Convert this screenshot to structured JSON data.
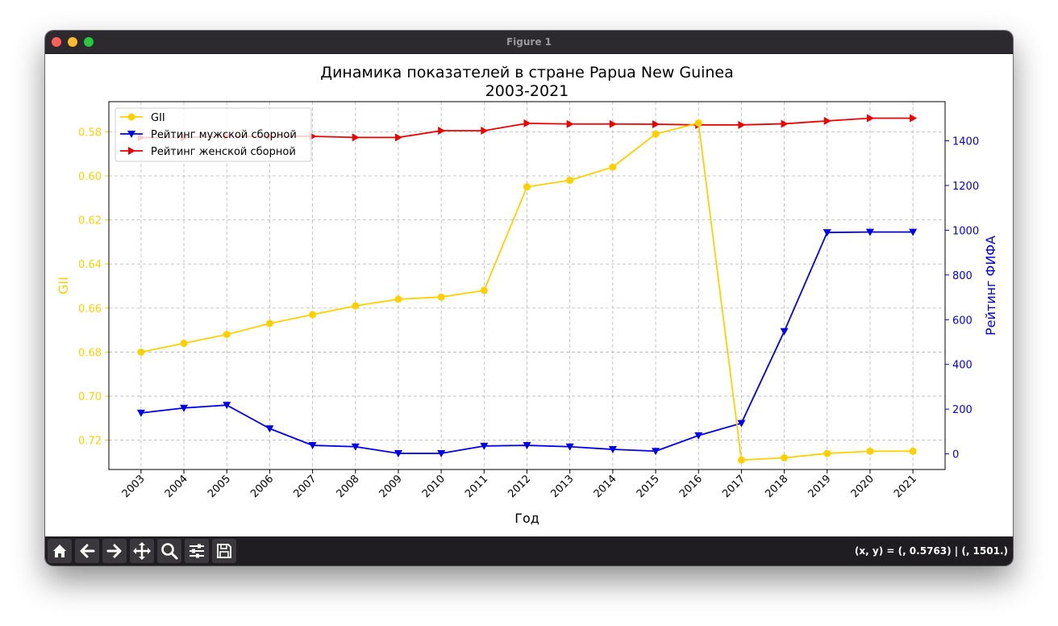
{
  "window": {
    "title": "Figure 1"
  },
  "toolbar": {
    "tools": [
      "home-icon",
      "back-arrow-icon",
      "forward-arrow-icon",
      "pan-icon",
      "zoom-icon",
      "configure-subplots-icon",
      "save-icon"
    ],
    "coords_text": "(x, y) = (, 0.5763) | (, 1501.)"
  },
  "chart_data": {
    "type": "line",
    "title": "Динамика показателей в стране Papua New Guinea",
    "subtitle": "2003-2021",
    "xlabel": "Год",
    "ylabel_left": "GII",
    "ylabel_right": "Рейтинг ФИФА",
    "categories": [
      "2003",
      "2004",
      "2005",
      "2006",
      "2007",
      "2008",
      "2009",
      "2010",
      "2011",
      "2012",
      "2013",
      "2014",
      "2015",
      "2016",
      "2017",
      "2018",
      "2019",
      "2020",
      "2021"
    ],
    "left_axis": {
      "ylim": [
        0.7333,
        0.5663
      ],
      "inverted": true,
      "ticks": [
        "0.58",
        "0.60",
        "0.62",
        "0.64",
        "0.66",
        "0.68",
        "0.70",
        "0.72"
      ],
      "tick_values": [
        0.58,
        0.6,
        0.62,
        0.64,
        0.66,
        0.68,
        0.7,
        0.72
      ]
    },
    "right_axis": {
      "ylim": [
        -70,
        1575
      ],
      "ticks": [
        "0",
        "200",
        "400",
        "600",
        "800",
        "1000",
        "1200",
        "1400"
      ],
      "tick_values": [
        0,
        200,
        400,
        600,
        800,
        1000,
        1200,
        1400
      ]
    },
    "series": [
      {
        "name": "GII",
        "axis": "left",
        "color": "#ffd000",
        "marker": "circle",
        "values": [
          0.68,
          0.676,
          0.672,
          0.667,
          0.663,
          0.659,
          0.656,
          0.655,
          0.652,
          0.605,
          0.602,
          0.596,
          0.581,
          0.576,
          0.729,
          0.728,
          0.726,
          0.725,
          0.725
        ]
      },
      {
        "name": "Рейтинг мужской сборной",
        "axis": "right",
        "color": "#0000ee",
        "marker": "triangle-down",
        "values": [
          183,
          205,
          218,
          113,
          38,
          32,
          2,
          2,
          35,
          38,
          32,
          20,
          12,
          82,
          137,
          548,
          990,
          992,
          992
        ]
      },
      {
        "name": "Рейтинг женской сборной",
        "axis": "right",
        "color": "#ee0000",
        "marker": "triangle-right",
        "values": [
          1415,
          1415,
          1420,
          1420,
          1420,
          1415,
          1415,
          1445,
          1445,
          1478,
          1475,
          1475,
          1474,
          1471,
          1471,
          1476,
          1489,
          1501,
          1501
        ]
      }
    ],
    "grid": true,
    "legend_position": "upper-left"
  }
}
